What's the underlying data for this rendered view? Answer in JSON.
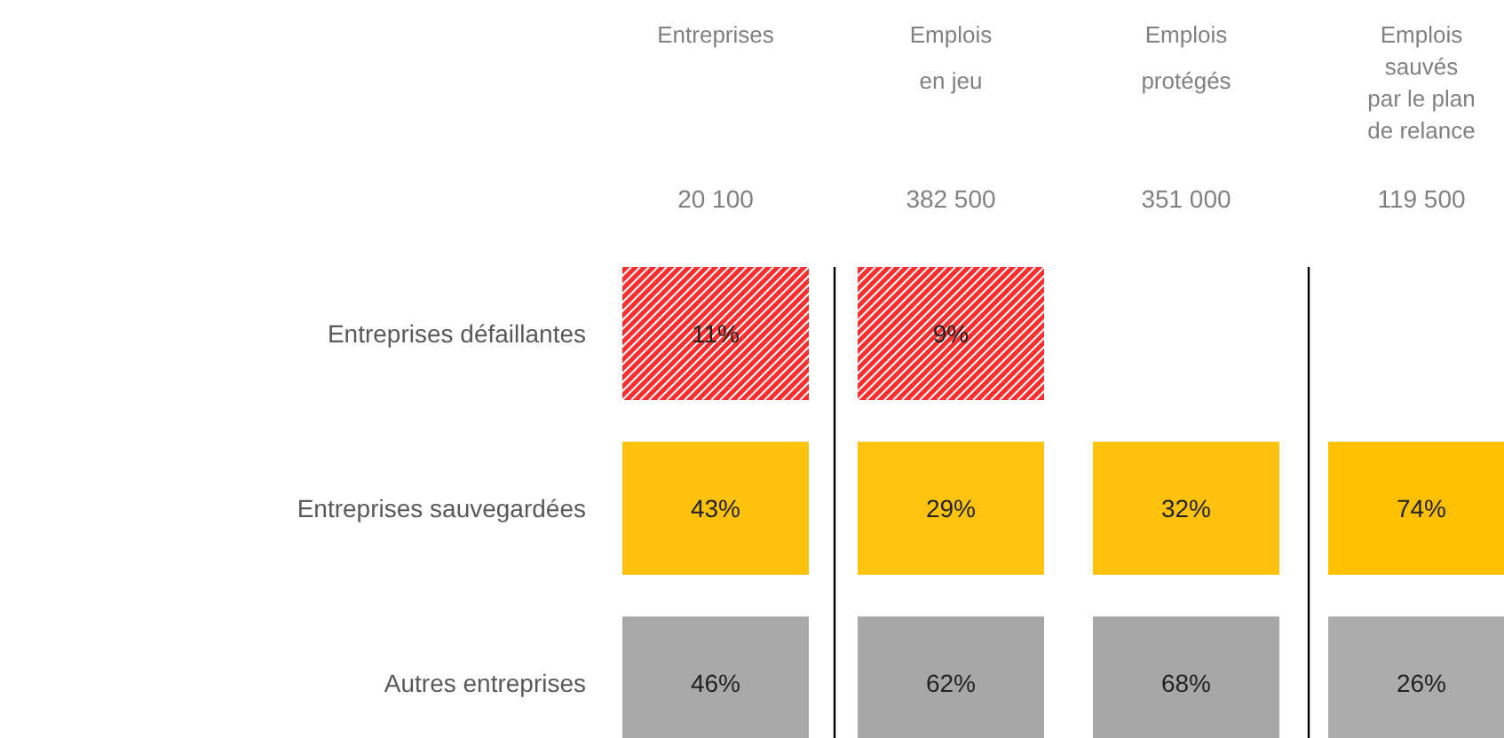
{
  "chart_data": {
    "type": "heatmap",
    "categories": [
      "Entreprises",
      "Emplois\nen jeu",
      "Emplois\nprotégés",
      "Emplois\nsauvés\npar le plan\nde relance"
    ],
    "y_categories": [
      "Entreprises défaillantes",
      "Entreprises sauvegardées",
      "Autres entreprises"
    ],
    "cells": [
      [
        11,
        9,
        null,
        null
      ],
      [
        43,
        29,
        32,
        74
      ],
      [
        46,
        62,
        68,
        26
      ]
    ],
    "cell_labels": [
      [
        "11%",
        "9%",
        null,
        null
      ],
      [
        "43%",
        "29%",
        "32%",
        "74%"
      ],
      [
        "46%",
        "62%",
        "68%",
        "26%"
      ]
    ],
    "colors": [
      "#ff1a1a",
      "#ffc000",
      "#a6a6a6"
    ],
    "totals": [
      "20 100",
      "382 500",
      "351 000",
      "119 500"
    ]
  }
}
